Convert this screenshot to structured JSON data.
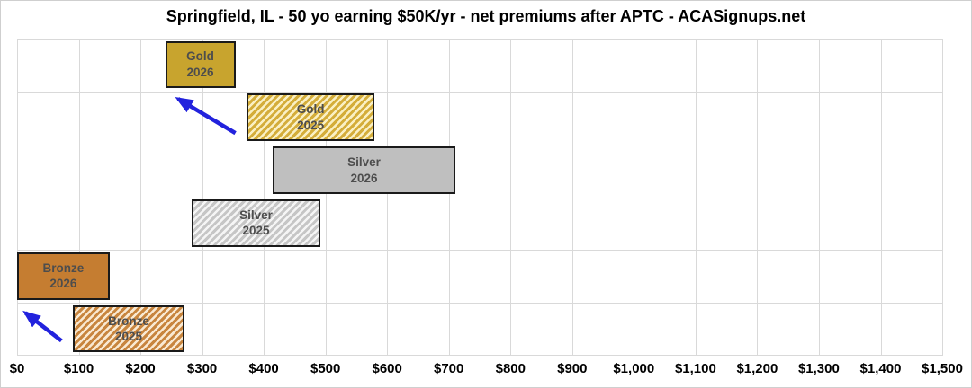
{
  "title": "Springfield, IL - 50 yo earning $50K/yr - net premiums after APTC - ACASignups.net",
  "chart_data": {
    "type": "bar",
    "subtype": "horizontal-floating-range",
    "title": "Springfield, IL - 50 yo earning $50K/yr - net premiums after APTC - ACASignups.net",
    "xlabel": "",
    "ylabel": "",
    "xlim": [
      0,
      1500
    ],
    "x_tick_step": 100,
    "x_tick_labels": [
      "$0",
      "$100",
      "$200",
      "$300",
      "$400",
      "$500",
      "$600",
      "$700",
      "$800",
      "$900",
      "$1,000",
      "$1,100",
      "$1,200",
      "$1,300",
      "$1,400",
      "$1,500"
    ],
    "grid": true,
    "legend": false,
    "rows": [
      {
        "tier": "Gold",
        "year": "2026",
        "min": 240,
        "max": 354,
        "fill": "solid",
        "color_key": "gold"
      },
      {
        "tier": "Gold",
        "year": "2025",
        "min": 372,
        "max": 580,
        "fill": "hatched",
        "color_key": "gold"
      },
      {
        "tier": "Silver",
        "year": "2026",
        "min": 415,
        "max": 710,
        "fill": "solid",
        "color_key": "silver"
      },
      {
        "tier": "Silver",
        "year": "2025",
        "min": 283,
        "max": 492,
        "fill": "hatched",
        "color_key": "silver"
      },
      {
        "tier": "Bronze",
        "year": "2026",
        "min": 0,
        "max": 150,
        "fill": "solid",
        "color_key": "bronze"
      },
      {
        "tier": "Bronze",
        "year": "2025",
        "min": 90,
        "max": 272,
        "fill": "hatched",
        "color_key": "bronze"
      }
    ],
    "colors": {
      "gold_solid": "#c8a42e",
      "gold_hatch_stripe": "#d4ad3a",
      "gold_hatch_bg": "#faf0c4",
      "silver_solid": "#bfbfbf",
      "silver_hatch_stripe": "#c6c6c6",
      "silver_hatch_bg": "#f5f5f5",
      "bronze_solid": "#c57d31",
      "bronze_hatch_stripe": "#c8853e",
      "bronze_hatch_bg": "#f9e9d2",
      "bar_border": "#1a1a1a",
      "bar_label_text": "#4d4d4d",
      "grid_line": "#d9d9d9",
      "arrow": "#2222dd",
      "axis_text": "#000000"
    },
    "annotations": [
      {
        "type": "arrow",
        "desc": "gold-2025-down-to-gold-2026",
        "x1_pct": 23.6,
        "y1_pct": 29.8,
        "x2_pct": 17.4,
        "y2_pct": 19.0
      },
      {
        "type": "arrow",
        "desc": "bronze-2025-down-to-bronze-2026",
        "x1_pct": 4.8,
        "y1_pct": 95.3,
        "x2_pct": 0.9,
        "y2_pct": 86.5
      }
    ]
  }
}
